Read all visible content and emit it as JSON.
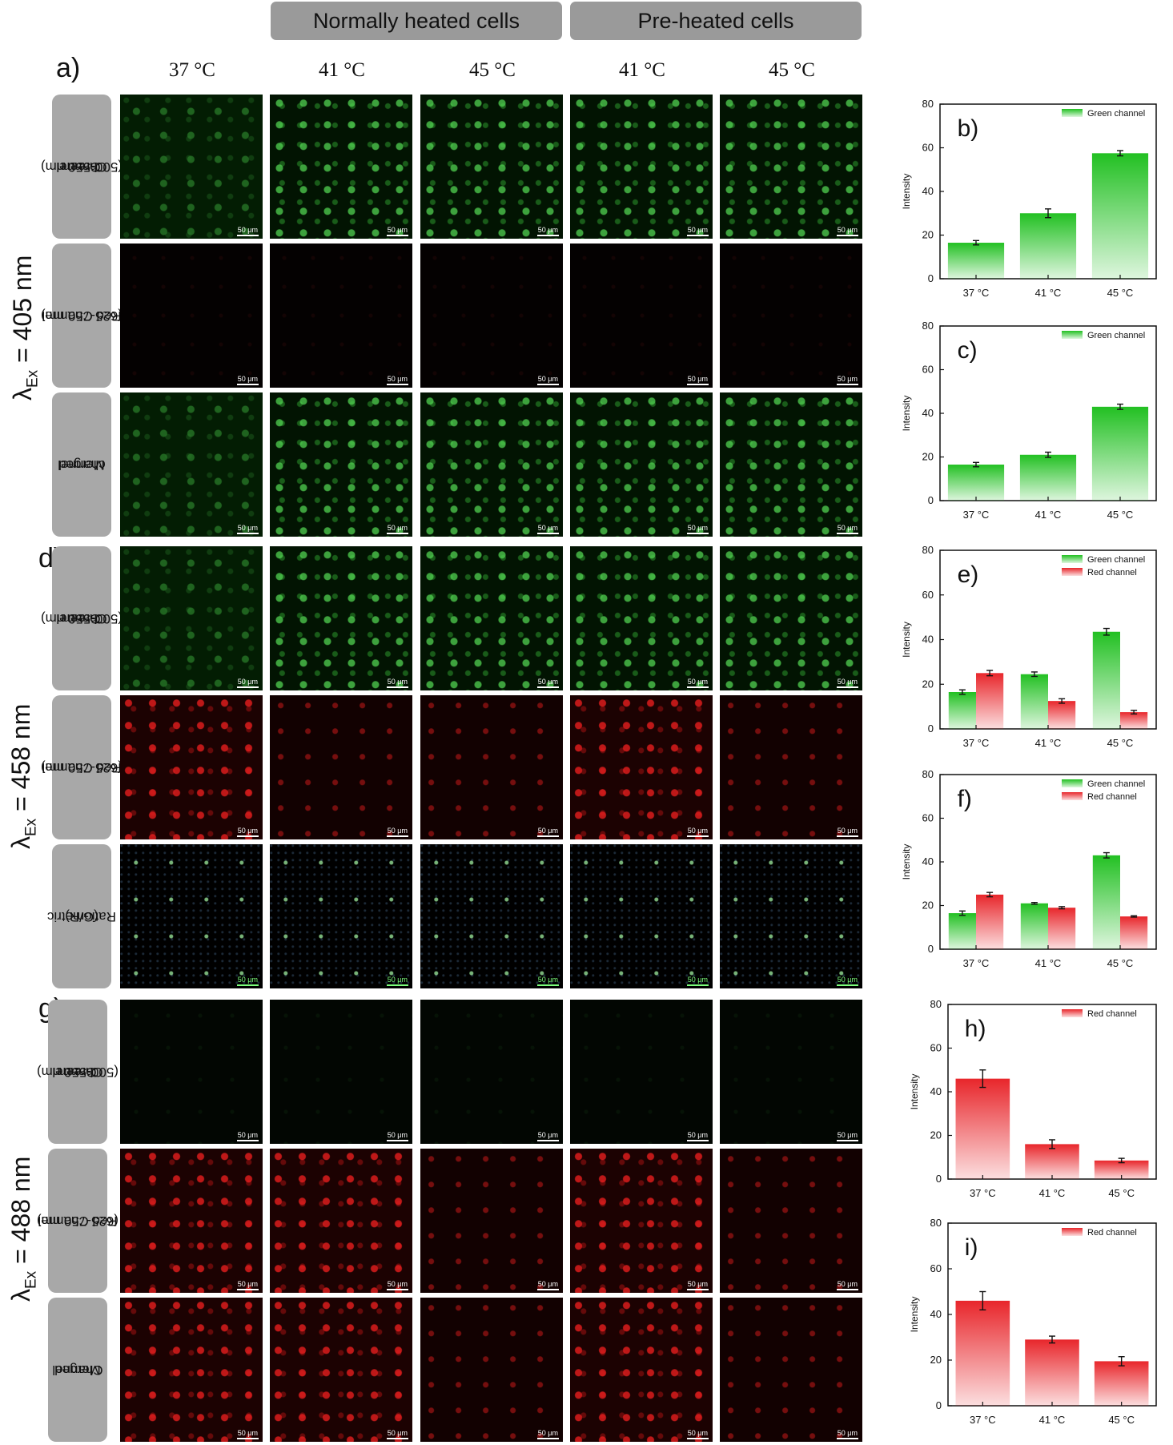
{
  "headers": {
    "normal": "Normally heated cells",
    "preheated": "Pre-heated cells"
  },
  "panel_labels": {
    "a": "a)",
    "d": "d)",
    "g": "g)"
  },
  "column_temps": [
    "37 °C",
    "41 °C",
    "45 °C",
    "41 °C",
    "45 °C"
  ],
  "excitation": [
    {
      "prefix": "λ",
      "sub": "Ex",
      "value": "= 405 nm"
    },
    {
      "prefix": "λ",
      "sub": "Ex",
      "value": "= 458 nm"
    },
    {
      "prefix": "λ",
      "sub": "Ex",
      "value": "= 488 nm"
    }
  ],
  "row_labels": [
    [
      "Green",
      "Channel",
      "(500-550 nm)"
    ],
    [
      "Red Channel",
      "(625-750 nm)"
    ],
    [
      "Merged",
      "channel"
    ],
    [
      "Green",
      "Channel",
      "(500-550 nm)"
    ],
    [
      "Red Channel",
      "(625-750 nm)"
    ],
    [
      "Ratiometric",
      "(G/R)"
    ],
    [
      "Green",
      "Channel",
      "(500-550 nm)"
    ],
    [
      "Red Channel",
      "(625-750 nm)"
    ],
    [
      "Merged",
      "Channel"
    ]
  ],
  "scale_bar": "50 μm",
  "colors": {
    "green": "#22c022",
    "red": "#e8262b",
    "chip": "#a8a8a8",
    "header": "#9a9a9a"
  },
  "chart_data": [
    {
      "type": "bar",
      "label": "b)",
      "ylabel": "Intensity",
      "ylim": [
        0,
        80
      ],
      "yticks": [
        0,
        20,
        40,
        60,
        80
      ],
      "categories": [
        "37 °C",
        "41 °C",
        "45 °C"
      ],
      "legend": "top-right",
      "series": [
        {
          "name": "Green channel",
          "color": "green",
          "values": [
            16.5,
            30,
            57.5
          ],
          "errors": [
            1,
            2,
            1.2
          ]
        }
      ]
    },
    {
      "type": "bar",
      "label": "c)",
      "ylabel": "Intensity",
      "ylim": [
        0,
        80
      ],
      "yticks": [
        0,
        20,
        40,
        60,
        80
      ],
      "categories": [
        "37 °C",
        "41 °C",
        "45 °C"
      ],
      "legend": "top-right",
      "series": [
        {
          "name": "Green channel",
          "color": "green",
          "values": [
            16.5,
            21,
            43
          ],
          "errors": [
            1,
            1.2,
            1.2
          ]
        }
      ]
    },
    {
      "type": "bar",
      "label": "e)",
      "ylabel": "Intensity",
      "ylim": [
        0,
        80
      ],
      "yticks": [
        0,
        20,
        40,
        60,
        80
      ],
      "categories": [
        "37 °C",
        "41 °C",
        "45 °C"
      ],
      "legend": "top-right",
      "series": [
        {
          "name": "Green channel",
          "color": "green",
          "values": [
            16.5,
            24.5,
            43.5
          ],
          "errors": [
            1,
            1,
            1.5
          ]
        },
        {
          "name": "Red channel",
          "color": "red",
          "values": [
            25,
            12.5,
            7.5
          ],
          "errors": [
            1.2,
            1,
            0.8
          ]
        }
      ]
    },
    {
      "type": "bar",
      "label": "f)",
      "ylabel": "Intensity",
      "ylim": [
        0,
        80
      ],
      "yticks": [
        0,
        20,
        40,
        60,
        80
      ],
      "categories": [
        "37 °C",
        "41 °C",
        "45 °C"
      ],
      "legend": "top-right",
      "series": [
        {
          "name": "Green channel",
          "color": "green",
          "values": [
            16.5,
            21,
            43
          ],
          "errors": [
            1,
            0.4,
            1.2
          ]
        },
        {
          "name": "Red channel",
          "color": "red",
          "values": [
            25,
            19,
            15
          ],
          "errors": [
            1,
            0.5,
            0.3
          ]
        }
      ]
    },
    {
      "type": "bar",
      "label": "h)",
      "ylabel": "Intensity",
      "ylim": [
        0,
        80
      ],
      "yticks": [
        0,
        20,
        40,
        60,
        80
      ],
      "categories": [
        "37 °C",
        "41 °C",
        "45 °C"
      ],
      "legend": "top-right",
      "series": [
        {
          "name": "Red channel",
          "color": "red",
          "values": [
            46,
            16,
            8.5
          ],
          "errors": [
            4,
            2,
            1
          ]
        }
      ]
    },
    {
      "type": "bar",
      "label": "i)",
      "ylabel": "Intensity",
      "ylim": [
        0,
        80
      ],
      "yticks": [
        0,
        20,
        40,
        60,
        80
      ],
      "categories": [
        "37 °C",
        "41 °C",
        "45 °C"
      ],
      "legend": "top-right",
      "series": [
        {
          "name": "Red channel",
          "color": "red",
          "values": [
            46,
            29,
            19.5
          ],
          "errors": [
            4,
            1.5,
            2
          ]
        }
      ]
    }
  ]
}
